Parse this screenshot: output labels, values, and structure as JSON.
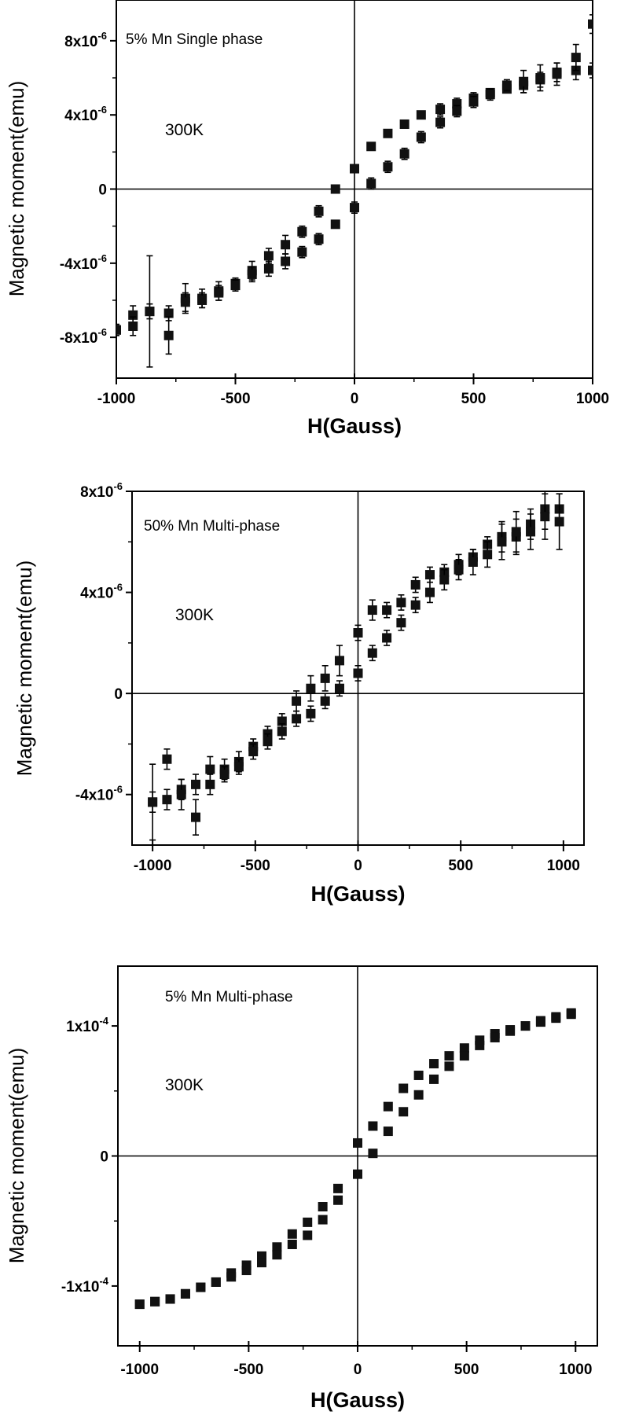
{
  "chart_data": [
    {
      "type": "scatter",
      "title": "",
      "xlabel": "H(Gauss)",
      "ylabel": "Magnetic moment(emu)",
      "xlim": [
        -1000,
        1000
      ],
      "ylim": [
        -1.02e-05,
        1.02e-05
      ],
      "grid": false,
      "xticks": [
        -1000,
        -500,
        0,
        500,
        1000
      ],
      "xtick_labels": [
        "-1000",
        "-500",
        "0",
        "500",
        "1000"
      ],
      "yticks": [
        -8e-06,
        -4e-06,
        0,
        4e-06,
        8e-06
      ],
      "ytick_labels": [
        {
          "base": "-8x10",
          "exp": "-6"
        },
        {
          "base": "-4x10",
          "exp": "-6"
        },
        {
          "base": "0",
          "exp": ""
        },
        {
          "base": "4x10",
          "exp": "-6"
        },
        {
          "base": "8x10",
          "exp": "-6"
        }
      ],
      "annotations": [
        "5% Mn Single phase",
        "300K"
      ],
      "series": [
        {
          "x": [
            -1000,
            -930,
            -860,
            -780,
            -710,
            -640,
            -570,
            -500,
            -430,
            -360,
            -290,
            -220,
            -150,
            -80,
            0,
            70,
            140,
            210,
            280,
            360,
            430,
            500,
            570,
            640,
            710,
            780,
            850,
            930,
            1000
          ],
          "y": [
            -7.6e-06,
            -6.8e-06,
            -6.6e-06,
            -6.7e-06,
            -5.9e-06,
            -5.9e-06,
            -5.5e-06,
            -5.1e-06,
            -4.4e-06,
            -3.6e-06,
            -3e-06,
            -2.3e-06,
            -1.2e-06,
            0,
            1.1e-06,
            2.3e-06,
            3e-06,
            3.5e-06,
            4e-06,
            4.3e-06,
            4.6e-06,
            4.9e-06,
            5.2e-06,
            5.4e-06,
            5.6e-06,
            5.9e-06,
            6.3e-06,
            6.4e-06,
            6.4e-06
          ],
          "yerr": [
            3e-07,
            5e-07,
            3e-06,
            4e-07,
            8e-07,
            5e-07,
            5e-07,
            3e-07,
            5e-07,
            4e-07,
            5e-07,
            3e-07,
            3e-07,
            1e-07,
            2e-07,
            2e-07,
            2e-07,
            2e-07,
            2e-07,
            3e-07,
            3e-07,
            3e-07,
            2e-07,
            2e-07,
            4e-07,
            4e-07,
            5e-07,
            5e-07,
            4e-07
          ]
        },
        {
          "x": [
            -1000,
            -930,
            -860,
            -780,
            -710,
            -640,
            -570,
            -500,
            -430,
            -360,
            -290,
            -220,
            -150,
            -80,
            0,
            70,
            140,
            210,
            280,
            360,
            430,
            500,
            570,
            640,
            710,
            780,
            850,
            930,
            1000
          ],
          "y": [
            -7.6e-06,
            -7.4e-06,
            -6.6e-06,
            -7.9e-06,
            -6.1e-06,
            -6e-06,
            -5.6e-06,
            -5.2e-06,
            -4.6e-06,
            -4.3e-06,
            -3.9e-06,
            -3.4e-06,
            -2.7e-06,
            -1.9e-06,
            -1e-06,
            3e-07,
            1.2e-06,
            1.9e-06,
            2.8e-06,
            3.6e-06,
            4.2e-06,
            4.7e-06,
            5.1e-06,
            5.6e-06,
            5.8e-06,
            6e-06,
            6.2e-06,
            7.1e-06,
            8.9e-06
          ],
          "yerr": [
            3e-07,
            5e-07,
            4e-07,
            1e-06,
            5e-07,
            4e-07,
            4e-07,
            3e-07,
            4e-07,
            4e-07,
            4e-07,
            3e-07,
            3e-07,
            2e-07,
            3e-07,
            3e-07,
            3e-07,
            3e-07,
            3e-07,
            3e-07,
            3e-07,
            3e-07,
            3e-07,
            3e-07,
            6e-07,
            7e-07,
            6e-07,
            7e-07,
            5e-07
          ]
        }
      ]
    },
    {
      "type": "scatter",
      "title": "",
      "xlabel": "H(Gauss)",
      "ylabel": "Magnetic moment(emu)",
      "xlim": [
        -1100,
        1100
      ],
      "ylim": [
        -6e-06,
        8e-06
      ],
      "grid": false,
      "xticks": [
        -1000,
        -500,
        0,
        500,
        1000
      ],
      "xtick_labels": [
        "-1000",
        "-500",
        "0",
        "500",
        "1000"
      ],
      "yticks": [
        -4e-06,
        0,
        4e-06,
        8e-06
      ],
      "ytick_labels": [
        {
          "base": "-4x10",
          "exp": "-6"
        },
        {
          "base": "0",
          "exp": ""
        },
        {
          "base": "4x10",
          "exp": "-6"
        },
        {
          "base": "8x10",
          "exp": "-6"
        }
      ],
      "annotations": [
        "50% Mn Multi-phase",
        "300K"
      ],
      "series": [
        {
          "x": [
            -1000,
            -930,
            -860,
            -790,
            -720,
            -650,
            -580,
            -510,
            -440,
            -370,
            -300,
            -230,
            -160,
            -90,
            0,
            70,
            140,
            210,
            280,
            350,
            420,
            490,
            560,
            630,
            700,
            770,
            840,
            910,
            980
          ],
          "y": [
            -4.3e-06,
            -2.6e-06,
            -3.8e-06,
            -3.6e-06,
            -3e-06,
            -3e-06,
            -2.7e-06,
            -2.1e-06,
            -1.6e-06,
            -1.1e-06,
            -3e-07,
            2e-07,
            6e-07,
            1.3e-06,
            2.4e-06,
            3.3e-06,
            3.3e-06,
            3.6e-06,
            4.3e-06,
            4.7e-06,
            4.8e-06,
            5.1e-06,
            5.4e-06,
            5.9e-06,
            6.2e-06,
            6.2e-06,
            6.7e-06,
            7.3e-06,
            7.3e-06
          ],
          "yerr": [
            1.5e-06,
            4e-07,
            4e-07,
            4e-07,
            5e-07,
            4e-07,
            4e-07,
            3e-07,
            3e-07,
            3e-07,
            4e-07,
            5e-07,
            5e-07,
            6e-07,
            3e-07,
            4e-07,
            3e-07,
            3e-07,
            3e-07,
            3e-07,
            3e-07,
            4e-07,
            3e-07,
            3e-07,
            6e-07,
            7e-07,
            6e-07,
            8e-07,
            6e-07
          ]
        },
        {
          "x": [
            -1000,
            -930,
            -860,
            -790,
            -720,
            -650,
            -580,
            -510,
            -440,
            -370,
            -300,
            -230,
            -160,
            -90,
            0,
            70,
            140,
            210,
            280,
            350,
            420,
            490,
            560,
            630,
            700,
            770,
            840,
            910,
            980
          ],
          "y": [
            -4.3e-06,
            -4.2e-06,
            -4e-06,
            -4.9e-06,
            -3.6e-06,
            -3.2e-06,
            -2.9e-06,
            -2.3e-06,
            -1.9e-06,
            -1.5e-06,
            -1e-06,
            -8e-07,
            -3e-07,
            2e-07,
            8e-07,
            1.6e-06,
            2.2e-06,
            2.8e-06,
            3.5e-06,
            4e-06,
            4.5e-06,
            4.9e-06,
            5.2e-06,
            5.5e-06,
            6e-06,
            6.4e-06,
            6.4e-06,
            7e-06,
            6.8e-06
          ],
          "yerr": [
            4e-07,
            4e-07,
            6e-07,
            7e-07,
            4e-07,
            3e-07,
            3e-07,
            3e-07,
            3e-07,
            3e-07,
            3e-07,
            3e-07,
            3e-07,
            3e-07,
            3e-07,
            3e-07,
            3e-07,
            3e-07,
            3e-07,
            4e-07,
            4e-07,
            4e-07,
            5e-07,
            5e-07,
            7e-07,
            8e-07,
            7e-07,
            9e-07,
            1.1e-06
          ]
        }
      ]
    },
    {
      "type": "scatter",
      "title": "",
      "xlabel": "H(Gauss)",
      "ylabel": "Magnetic moment(emu)",
      "xlim": [
        -1100,
        1100
      ],
      "ylim": [
        -0.000146,
        0.000146
      ],
      "grid": false,
      "xticks": [
        -1000,
        -500,
        0,
        500,
        1000
      ],
      "xtick_labels": [
        "-1000",
        "-500",
        "0",
        "500",
        "1000"
      ],
      "yticks": [
        -0.0001,
        0,
        0.0001
      ],
      "ytick_labels": [
        {
          "base": "-1x10",
          "exp": "-4"
        },
        {
          "base": "0",
          "exp": ""
        },
        {
          "base": "1x10",
          "exp": "-4"
        }
      ],
      "annotations": [
        "5% Mn Multi-phase",
        "300K"
      ],
      "series": [
        {
          "x": [
            -1000,
            -930,
            -860,
            -790,
            -720,
            -650,
            -580,
            -510,
            -440,
            -370,
            -300,
            -230,
            -160,
            -90,
            0,
            70,
            140,
            210,
            280,
            350,
            420,
            490,
            560,
            630,
            700,
            770,
            840,
            910,
            980
          ],
          "y": [
            -0.000114,
            -0.000112,
            -0.00011,
            -0.000106,
            -0.000101,
            -9.7e-05,
            -9e-05,
            -8.4e-05,
            -7.7e-05,
            -7e-05,
            -6e-05,
            -5.1e-05,
            -3.9e-05,
            -2.5e-05,
            1e-05,
            2.3e-05,
            3.8e-05,
            5.2e-05,
            6.2e-05,
            7.1e-05,
            7.7e-05,
            8.3e-05,
            8.9e-05,
            9.4e-05,
            9.7e-05,
            0.0001,
            0.000103,
            0.000106,
            0.000109
          ],
          "yerr": []
        },
        {
          "x": [
            -1000,
            -930,
            -860,
            -790,
            -720,
            -650,
            -580,
            -510,
            -440,
            -370,
            -300,
            -230,
            -160,
            -90,
            0,
            70,
            140,
            210,
            280,
            350,
            420,
            490,
            560,
            630,
            700,
            770,
            840,
            910,
            980
          ],
          "y": [
            -0.000114,
            -0.000112,
            -0.00011,
            -0.000106,
            -0.000101,
            -9.7e-05,
            -9.3e-05,
            -8.8e-05,
            -8.2e-05,
            -7.6e-05,
            -6.8e-05,
            -6.1e-05,
            -4.9e-05,
            -3.4e-05,
            -1.4e-05,
            2e-06,
            1.9e-05,
            3.4e-05,
            4.7e-05,
            5.9e-05,
            6.9e-05,
            7.7e-05,
            8.5e-05,
            9.1e-05,
            9.6e-05,
            0.0001,
            0.000104,
            0.000107,
            0.00011
          ],
          "yerr": []
        }
      ]
    }
  ]
}
